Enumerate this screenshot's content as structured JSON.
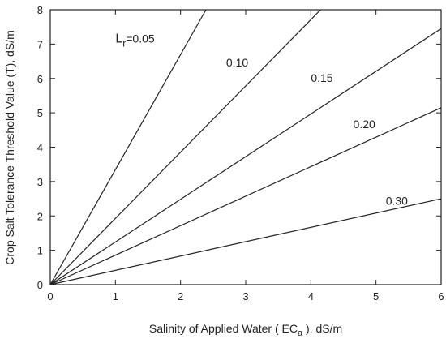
{
  "chart_data": {
    "type": "line",
    "xlabel_parts": [
      "Salinity of Applied Water ( EC",
      "a",
      " ), dS/m"
    ],
    "ylabel": "Crop Salt Tolerance Threshold Value (T), dS/m",
    "xlim": [
      0,
      6
    ],
    "ylim": [
      0,
      8
    ],
    "xticks": [
      "0",
      "1",
      "2",
      "3",
      "4",
      "5",
      "6"
    ],
    "yticks": [
      "0",
      "1",
      "2",
      "3",
      "4",
      "5",
      "6",
      "7",
      "8"
    ],
    "grid": false,
    "series": [
      {
        "name": "L|r|=0.05",
        "x": [
          0,
          2.39
        ],
        "y": [
          0,
          8
        ]
      },
      {
        "name": "0.10",
        "x": [
          0,
          4.15
        ],
        "y": [
          0,
          8
        ]
      },
      {
        "name": "0.15",
        "x": [
          0,
          6
        ],
        "y": [
          0,
          7.45
        ]
      },
      {
        "name": "0.20",
        "x": [
          0,
          6
        ],
        "y": [
          0,
          5.15
        ]
      },
      {
        "name": "0.30",
        "x": [
          0,
          6
        ],
        "y": [
          0,
          2.5
        ]
      }
    ],
    "series_labels": [
      {
        "prefix": "L",
        "sub": "r",
        "rest": "=0.05"
      },
      {
        "prefix": "0.10",
        "sub": "",
        "rest": ""
      },
      {
        "prefix": "0.15",
        "sub": "",
        "rest": ""
      },
      {
        "prefix": "0.20",
        "sub": "",
        "rest": ""
      },
      {
        "prefix": "0.30",
        "sub": "",
        "rest": ""
      }
    ]
  }
}
